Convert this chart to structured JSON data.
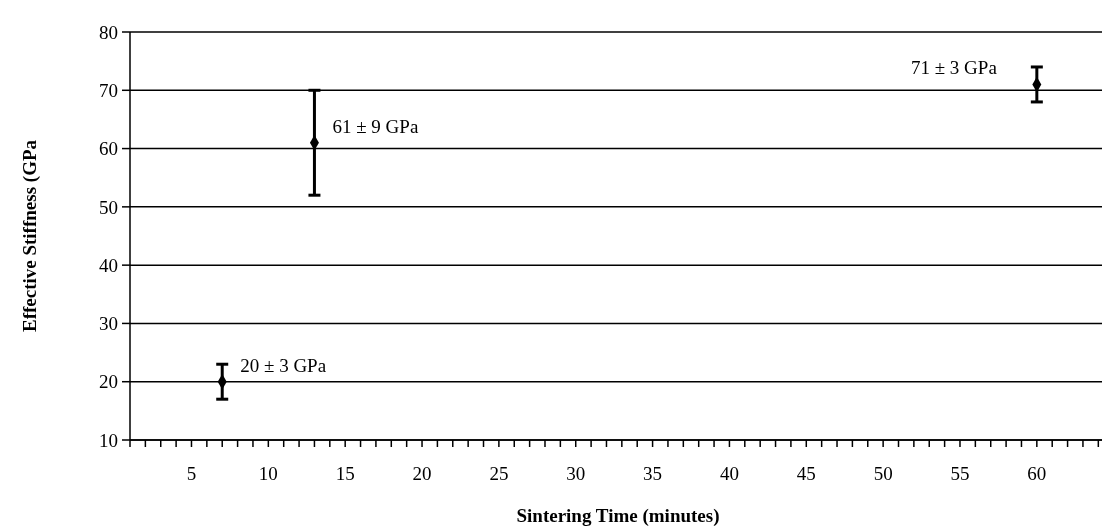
{
  "chart_data": {
    "type": "scatter",
    "xlabel": "Sintering Time (minutes)",
    "ylabel": "Effective Stiffness (GPa",
    "x": [
      7,
      13,
      60
    ],
    "values": [
      20,
      61,
      71
    ],
    "errors": [
      3,
      9,
      3
    ],
    "color": "#000000",
    "marker": "diamond",
    "xlim": [
      1,
      64.5
    ],
    "ylim": [
      10,
      80
    ],
    "xticks": [
      {
        "value": 1,
        "label": null
      },
      {
        "value": 2,
        "label": null
      },
      {
        "value": 3,
        "label": null
      },
      {
        "value": 4,
        "label": null
      },
      5,
      {
        "value": 6,
        "label": null
      },
      {
        "value": 7,
        "label": null
      },
      {
        "value": 8,
        "label": null
      },
      {
        "value": 9,
        "label": null
      },
      10,
      {
        "value": 11,
        "label": null
      },
      {
        "value": 12,
        "label": null
      },
      {
        "value": 13,
        "label": null
      },
      {
        "value": 14,
        "label": null
      },
      15,
      {
        "value": 16,
        "label": null
      },
      {
        "value": 17,
        "label": null
      },
      {
        "value": 18,
        "label": null
      },
      {
        "value": 19,
        "label": null
      },
      20,
      {
        "value": 21,
        "label": null
      },
      {
        "value": 22,
        "label": null
      },
      {
        "value": 23,
        "label": null
      },
      {
        "value": 24,
        "label": null
      },
      25,
      {
        "value": 26,
        "label": null
      },
      {
        "value": 27,
        "label": null
      },
      {
        "value": 28,
        "label": null
      },
      {
        "value": 29,
        "label": null
      },
      30,
      {
        "value": 31,
        "label": null
      },
      {
        "value": 32,
        "label": null
      },
      {
        "value": 33,
        "label": null
      },
      {
        "value": 34,
        "label": null
      },
      35,
      {
        "value": 36,
        "label": null
      },
      {
        "value": 37,
        "label": null
      },
      {
        "value": 38,
        "label": null
      },
      {
        "value": 39,
        "label": null
      },
      40,
      {
        "value": 41,
        "label": null
      },
      {
        "value": 42,
        "label": null
      },
      {
        "value": 43,
        "label": null
      },
      {
        "value": 44,
        "label": null
      },
      45,
      {
        "value": 46,
        "label": null
      },
      {
        "value": 47,
        "label": null
      },
      {
        "value": 48,
        "label": null
      },
      {
        "value": 49,
        "label": null
      },
      50,
      {
        "value": 51,
        "label": null
      },
      {
        "value": 52,
        "label": null
      },
      {
        "value": 53,
        "label": null
      },
      {
        "value": 54,
        "label": null
      },
      55,
      {
        "value": 56,
        "label": null
      },
      {
        "value": 57,
        "label": null
      },
      {
        "value": 58,
        "label": null
      },
      {
        "value": 59,
        "label": null
      },
      60,
      {
        "value": 61,
        "label": null
      },
      {
        "value": 62,
        "label": null
      },
      {
        "value": 63,
        "label": null
      },
      {
        "value": 64,
        "label": null
      }
    ],
    "yticks": [
      10,
      20,
      30,
      40,
      50,
      60,
      70,
      80
    ],
    "grid": "y",
    "annotations": [
      {
        "text": "20 ± 3 GPa",
        "x": 7,
        "y": 20
      },
      {
        "text": "61 ± 9 GPa",
        "x": 13,
        "y": 61
      },
      {
        "text": "71 ± 3 GPa",
        "x": 60,
        "y": 71
      }
    ]
  }
}
